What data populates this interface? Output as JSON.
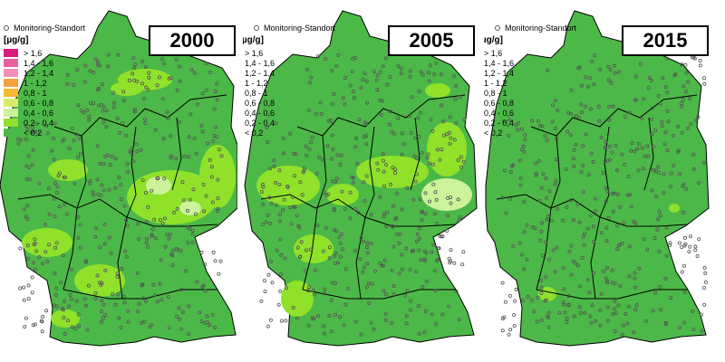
{
  "legend": {
    "station_label": "Monitoring-Standort",
    "unit_label": "[µg/g]",
    "unit_label_full": "As [µg/g]",
    "classes": [
      {
        "label": "> 1,6",
        "color": "#d81b7a"
      },
      {
        "label": "1,4 - 1,6",
        "color": "#e8609e"
      },
      {
        "label": "1,2 - 1,4",
        "color": "#f08fb8"
      },
      {
        "label": "1 - 1,2",
        "color": "#f6a040"
      },
      {
        "label": "0,8 - 1",
        "color": "#f8b830"
      },
      {
        "label": "0,6 - 0,8",
        "color": "#d8ec6a"
      },
      {
        "label": "0,4 - 0,6",
        "color": "#ccf29a"
      },
      {
        "label": "0,2 - 0,4",
        "color": "#8fe12a"
      },
      {
        "label": "< 0,2",
        "color": "#4cb848"
      }
    ]
  },
  "panels": [
    {
      "year": "2000"
    },
    {
      "year": "2005"
    },
    {
      "year": "2015"
    }
  ],
  "colors": {
    "base": "#4cb848",
    "bright": "#8fe12a",
    "pale": "#ccf29a",
    "border": "#000000"
  }
}
